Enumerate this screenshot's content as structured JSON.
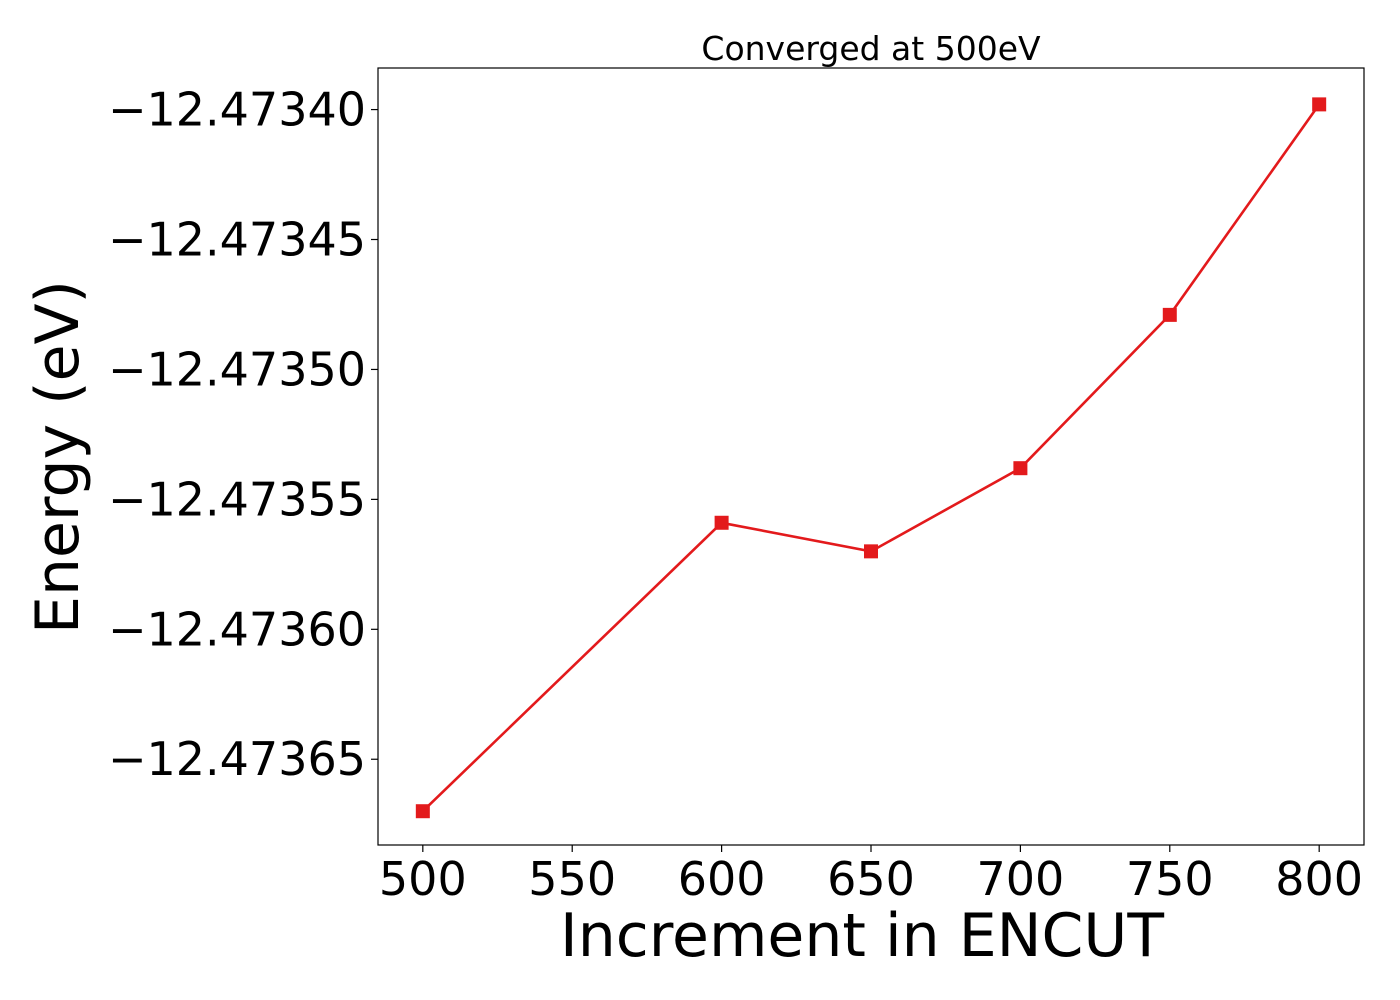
{
  "chart_data": {
    "type": "line",
    "title": "Converged at 500eV",
    "xlabel": "Increment in ENCUT",
    "ylabel": "Energy (eV)",
    "x": [
      500,
      600,
      650,
      700,
      750,
      800
    ],
    "series": [
      {
        "values": [
          -12.47367,
          -12.473559,
          -12.47357,
          -12.473538,
          -12.473479,
          -12.473398
        ],
        "color": "#e31a1c",
        "marker": "square"
      }
    ],
    "xlim": [
      485,
      815
    ],
    "ylim": [
      -12.473683,
      -12.473384
    ],
    "xticks": [
      500,
      550,
      600,
      650,
      700,
      750,
      800
    ],
    "yticks": [
      -12.47365,
      -12.4736,
      -12.47355,
      -12.4735,
      -12.47345,
      -12.4734
    ],
    "xtick_labels": [
      "500",
      "550",
      "600",
      "650",
      "700",
      "750",
      "800"
    ],
    "ytick_labels": [
      "−12.47365",
      "−12.47360",
      "−12.47355",
      "−12.47350",
      "−12.47345",
      "−12.47340"
    ],
    "grid": false,
    "legend": false
  }
}
